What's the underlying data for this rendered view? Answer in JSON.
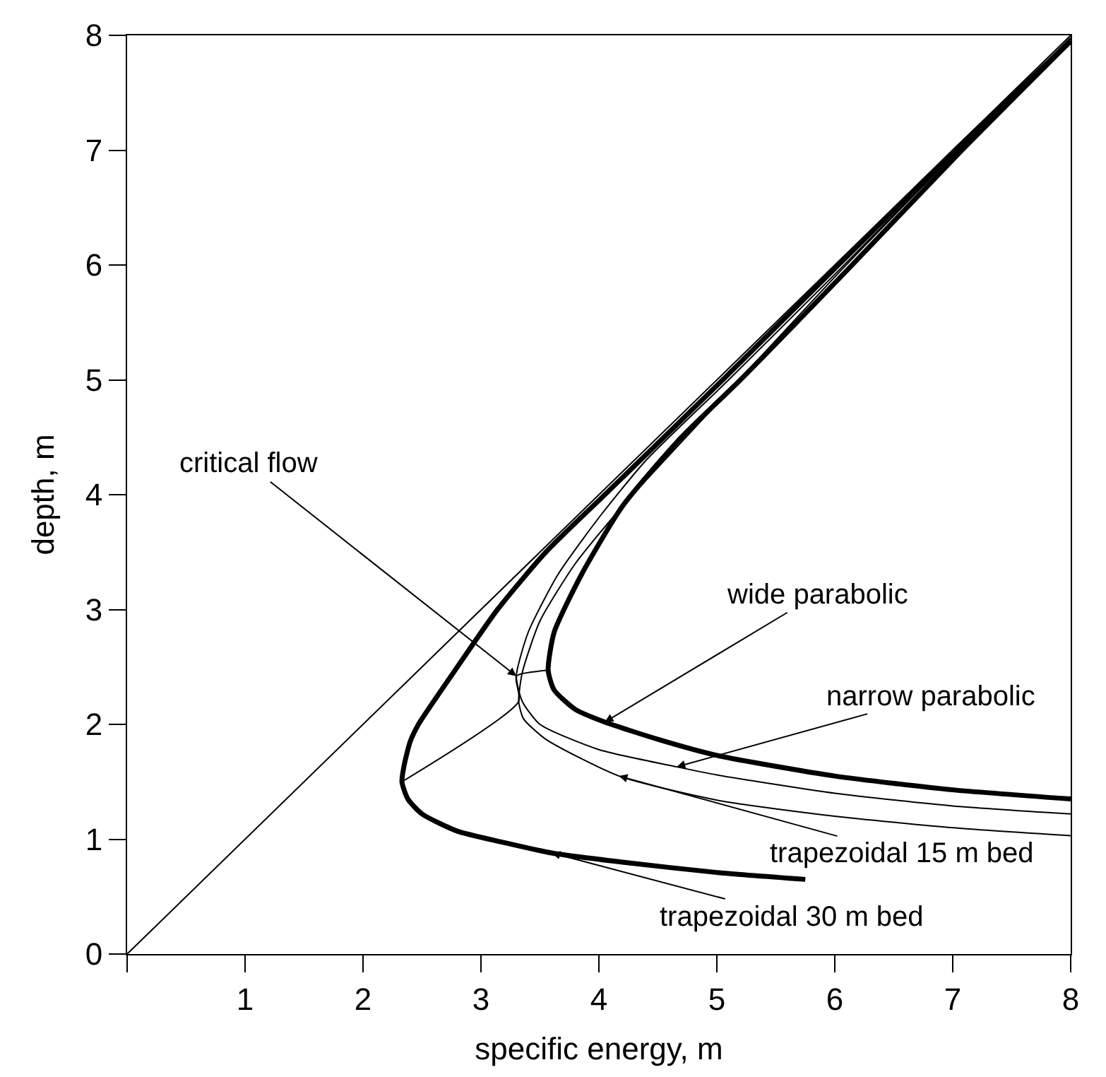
{
  "chart_data": {
    "type": "line",
    "xlabel": "specific energy, m",
    "ylabel": "depth, m",
    "xlim": [
      0,
      8
    ],
    "ylim": [
      0,
      8
    ],
    "xticks": [
      {
        "value": 0,
        "label": null
      },
      1,
      2,
      3,
      4,
      5,
      6,
      7,
      8
    ],
    "yticks": [
      0,
      1,
      2,
      3,
      4,
      5,
      6,
      7,
      8
    ],
    "marker": "none",
    "line_style": "solid",
    "series": [
      {
        "color": "#000000",
        "x": [
          0,
          8
        ],
        "values": [
          0,
          8
        ]
      },
      {
        "color": "#000000",
        "x": [
          8,
          7.02,
          6.03,
          5.05,
          4.05,
          3.55,
          3.14,
          2.8,
          2.47,
          2.4,
          2.35,
          2.33,
          2.38,
          2.5,
          2.8,
          3.2,
          3.6,
          4.2,
          5,
          5.75
        ],
        "values": [
          7.95,
          7,
          6,
          5,
          4,
          3.5,
          3,
          2.5,
          2,
          1.85,
          1.65,
          1.5,
          1.35,
          1.22,
          1.07,
          0.97,
          0.88,
          0.8,
          0.71,
          0.65
        ]
      },
      {
        "color": "#000000",
        "x": [
          8,
          7.02,
          6.05,
          5.1,
          4.2,
          3.8,
          3.5,
          3.35,
          3.32,
          3.36,
          3.55,
          4.17,
          5,
          6,
          7,
          8
        ],
        "values": [
          7.97,
          6.97,
          5.95,
          4.9,
          3.9,
          3.4,
          2.9,
          2.45,
          2.2,
          2.05,
          1.87,
          1.55,
          1.34,
          1.2,
          1.1,
          1.03
        ]
      },
      {
        "color": "#000000",
        "x": [
          8,
          7.02,
          6.05,
          5.1,
          4.4,
          4.0,
          3.65,
          3.4,
          3.3,
          3.35,
          3.5,
          4,
          4.66,
          5,
          6,
          7,
          8
        ],
        "values": [
          7.98,
          6.98,
          5.97,
          5,
          4.3,
          3.8,
          3.3,
          2.8,
          2.42,
          2.2,
          2.0,
          1.78,
          1.63,
          1.56,
          1.4,
          1.29,
          1.22
        ]
      },
      {
        "color": "#000000",
        "x": [
          8,
          7.05,
          6.1,
          5.2,
          4.7,
          4.2,
          3.85,
          3.62,
          3.57,
          3.62,
          3.8,
          4.05,
          4.5,
          5,
          6,
          7,
          8
        ],
        "values": [
          7.95,
          6.97,
          5.95,
          5,
          4.5,
          3.9,
          3.3,
          2.8,
          2.47,
          2.3,
          2.13,
          2.02,
          1.87,
          1.73,
          1.55,
          1.43,
          1.35
        ]
      },
      {
        "color": "#000000",
        "x": [
          2.33,
          3.32,
          3.3,
          3.57
        ],
        "values": [
          1.5,
          2.2,
          2.42,
          2.47
        ]
      }
    ],
    "annotations": [
      {
        "text": "critical flow",
        "x": 3.3,
        "y": 2.42
      },
      {
        "text": "wide parabolic",
        "x": 4.05,
        "y": 2.02
      },
      {
        "text": "narrow parabolic",
        "x": 4.66,
        "y": 1.63
      },
      {
        "text": "trapezoidal 15 m bed",
        "x": 4.17,
        "y": 1.55
      },
      {
        "text": "trapezoidal 30 m bed",
        "x": 3.6,
        "y": 0.88
      }
    ]
  }
}
